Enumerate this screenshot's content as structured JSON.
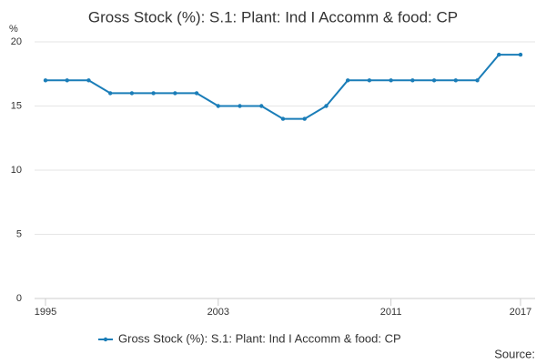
{
  "chart_data": {
    "type": "line",
    "title": "Gross Stock (%): S.1: Plant: Ind I Accomm & food: CP",
    "y_label": "%",
    "source": "Source:",
    "x": [
      1995,
      1996,
      1997,
      1998,
      1999,
      2000,
      2001,
      2002,
      2003,
      2004,
      2005,
      2006,
      2007,
      2008,
      2009,
      2010,
      2011,
      2012,
      2013,
      2014,
      2015,
      2016,
      2017
    ],
    "series": [
      {
        "name": "Gross Stock (%): S.1: Plant: Ind I Accomm & food: CP",
        "color": "#1a7db8",
        "values": [
          17,
          17,
          17,
          16,
          16,
          16,
          16,
          16,
          15,
          15,
          15,
          14,
          14,
          15,
          17,
          17,
          17,
          17,
          17,
          17,
          17,
          19,
          19
        ]
      }
    ],
    "xlim": [
      1995,
      2017
    ],
    "xticks": [
      1995,
      2003,
      2011,
      2017
    ],
    "ylim": [
      0,
      20
    ],
    "yticks": [
      0,
      5,
      10,
      15,
      20
    ],
    "grid": true
  }
}
